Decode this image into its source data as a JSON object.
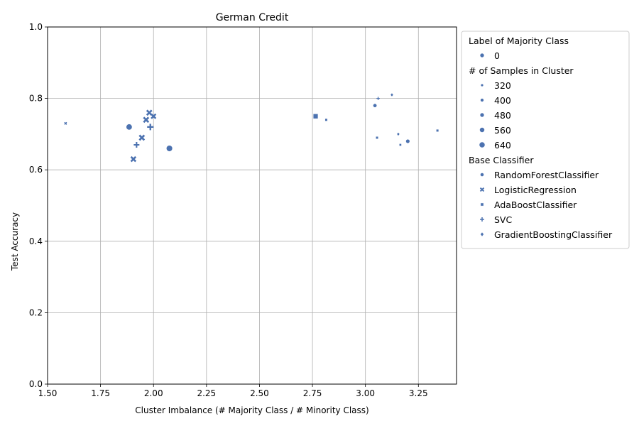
{
  "chart_data": {
    "type": "scatter",
    "title": "German Credit",
    "xlabel": "Cluster Imbalance (# Majority Class / # Minority Class)",
    "ylabel": "Test Accuracy",
    "xlim": [
      1.5,
      3.43
    ],
    "ylim": [
      0.0,
      1.0
    ],
    "xticks": [
      1.5,
      1.75,
      2.0,
      2.25,
      2.5,
      2.75,
      3.0,
      3.25
    ],
    "xtick_labels": [
      "1.50",
      "1.75",
      "2.00",
      "2.25",
      "2.50",
      "2.75",
      "3.00",
      "3.25"
    ],
    "yticks": [
      0.0,
      0.2,
      0.4,
      0.6,
      0.8,
      1.0
    ],
    "ytick_labels": [
      "0.0",
      "0.2",
      "0.4",
      "0.6",
      "0.8",
      "1.0"
    ],
    "grid": true,
    "color": "#4c72b0",
    "legend": {
      "position": "outside-right",
      "entries": [
        {
          "kind": "header",
          "text": "Label of Majority Class"
        },
        {
          "kind": "color",
          "text": "0"
        },
        {
          "kind": "header",
          "text": "# of Samples in Cluster"
        },
        {
          "kind": "size",
          "text": "320",
          "samples": 320
        },
        {
          "kind": "size",
          "text": "400",
          "samples": 400
        },
        {
          "kind": "size",
          "text": "480",
          "samples": 480
        },
        {
          "kind": "size",
          "text": "560",
          "samples": 560
        },
        {
          "kind": "size",
          "text": "640",
          "samples": 640
        },
        {
          "kind": "header",
          "text": "Base Classifier"
        },
        {
          "kind": "marker",
          "text": "RandomForestClassifier",
          "marker": "circle"
        },
        {
          "kind": "marker",
          "text": "LogisticRegression",
          "marker": "x"
        },
        {
          "kind": "marker",
          "text": "AdaBoostClassifier",
          "marker": "square"
        },
        {
          "kind": "marker",
          "text": "SVC",
          "marker": "plus"
        },
        {
          "kind": "marker",
          "text": "GradientBoostingClassifier",
          "marker": "diamond"
        }
      ]
    },
    "points": [
      {
        "classifier": "LogisticRegression",
        "marker": "x",
        "x": 1.585,
        "y": 0.73,
        "samples": 250
      },
      {
        "classifier": "RandomForestClassifier",
        "marker": "circle",
        "x": 1.885,
        "y": 0.72,
        "samples": 600
      },
      {
        "classifier": "LogisticRegression",
        "marker": "x",
        "x": 1.905,
        "y": 0.63,
        "samples": 500
      },
      {
        "classifier": "SVC",
        "marker": "plus",
        "x": 1.92,
        "y": 0.67,
        "samples": 500
      },
      {
        "classifier": "LogisticRegression",
        "marker": "x",
        "x": 1.945,
        "y": 0.69,
        "samples": 520
      },
      {
        "classifier": "LogisticRegression",
        "marker": "x",
        "x": 1.965,
        "y": 0.74,
        "samples": 520
      },
      {
        "classifier": "LogisticRegression",
        "marker": "x",
        "x": 1.98,
        "y": 0.76,
        "samples": 520
      },
      {
        "classifier": "SVC",
        "marker": "plus",
        "x": 1.985,
        "y": 0.72,
        "samples": 560
      },
      {
        "classifier": "LogisticRegression",
        "marker": "x",
        "x": 2.0,
        "y": 0.75,
        "samples": 480
      },
      {
        "classifier": "RandomForestClassifier",
        "marker": "circle",
        "x": 2.075,
        "y": 0.66,
        "samples": 620
      },
      {
        "classifier": "AdaBoostClassifier",
        "marker": "square",
        "x": 2.765,
        "y": 0.75,
        "samples": 600
      },
      {
        "classifier": "AdaBoostClassifier",
        "marker": "square",
        "x": 2.815,
        "y": 0.74,
        "samples": 330
      },
      {
        "classifier": "RandomForestClassifier",
        "marker": "circle",
        "x": 3.045,
        "y": 0.78,
        "samples": 400
      },
      {
        "classifier": "AdaBoostClassifier",
        "marker": "square",
        "x": 3.055,
        "y": 0.69,
        "samples": 330
      },
      {
        "classifier": "SVC",
        "marker": "plus",
        "x": 3.06,
        "y": 0.8,
        "samples": 300
      },
      {
        "classifier": "GradientBoostingClassifier",
        "marker": "diamond",
        "x": 3.125,
        "y": 0.81,
        "samples": 330
      },
      {
        "classifier": "GradientBoostingClassifier",
        "marker": "diamond",
        "x": 3.155,
        "y": 0.7,
        "samples": 330
      },
      {
        "classifier": "AdaBoostClassifier",
        "marker": "square",
        "x": 3.165,
        "y": 0.67,
        "samples": 300
      },
      {
        "classifier": "RandomForestClassifier",
        "marker": "circle",
        "x": 3.2,
        "y": 0.68,
        "samples": 420
      },
      {
        "classifier": "AdaBoostClassifier",
        "marker": "square",
        "x": 3.34,
        "y": 0.71,
        "samples": 330
      }
    ]
  }
}
